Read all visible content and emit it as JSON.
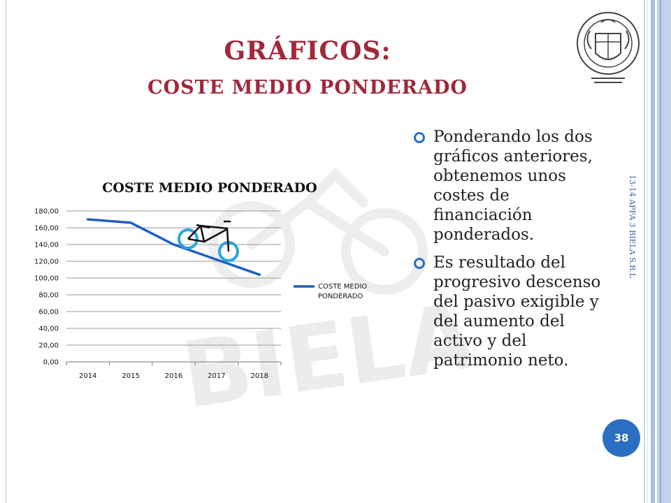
{
  "slide": {
    "title": "GRÁFICOS:",
    "subtitle": "COSTE MEDIO PONDERADO",
    "side_text": "13-14 APFA 3 BIELA S.R.L",
    "page_number": "38",
    "logo_icon": "university-crest-icon",
    "watermark_text": "BIELA"
  },
  "bullets": [
    "Ponderando los dos gráficos anteriores, obtenemos unos costes de financiación ponderados.",
    "Es resultado del progresivo descenso del pasivo exigible y del aumento del activo y del patrimonio neto."
  ],
  "colors": {
    "title": "#a0283a",
    "accent": "#2a6fc2",
    "series": "#1f5fbf"
  },
  "chart_data": {
    "type": "line",
    "title": "COSTE MEDIO PONDERADO",
    "categories": [
      "2014",
      "2015",
      "2016",
      "2017",
      "2018"
    ],
    "yticks": [
      "0,00",
      "20,00",
      "40,00",
      "60,00",
      "80,00",
      "100,00",
      "120,00",
      "140,00",
      "160,00",
      "180,00"
    ],
    "ylim": [
      0,
      180
    ],
    "grid": true,
    "legend_position": "right",
    "series": [
      {
        "name": "COSTE MEDIO PONDERADO",
        "values": [
          170,
          166,
          140,
          122,
          104
        ]
      }
    ],
    "legend_lines": [
      "COSTE MEDIO",
      "PONDERADO"
    ]
  }
}
